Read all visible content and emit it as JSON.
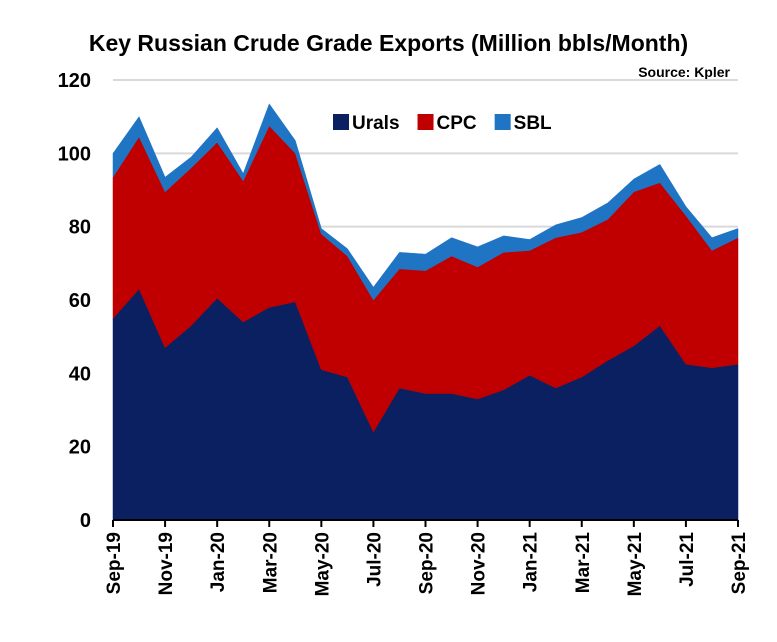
{
  "chart_data": {
    "type": "area",
    "stacked": true,
    "title": "Key Russian Crude Grade Exports (Million bbls/Month)",
    "source": "Source: Kpler",
    "xlabel": "",
    "ylabel": "",
    "ylim": [
      0,
      120
    ],
    "yticks": [
      0,
      20,
      40,
      60,
      80,
      100,
      120
    ],
    "grid": true,
    "legend_position": "top-right",
    "x": [
      "Sep-19",
      "Oct-19",
      "Nov-19",
      "Dec-19",
      "Jan-20",
      "Feb-20",
      "Mar-20",
      "Apr-20",
      "May-20",
      "Jun-20",
      "Jul-20",
      "Aug-20",
      "Sep-20",
      "Oct-20",
      "Nov-20",
      "Dec-20",
      "Jan-21",
      "Feb-21",
      "Mar-21",
      "Apr-21",
      "May-21",
      "Jun-21",
      "Jul-21",
      "Aug-21",
      "Sep-21"
    ],
    "xtick_labels": [
      "Sep-19",
      "Nov-19",
      "Jan-20",
      "Mar-20",
      "May-20",
      "Jul-20",
      "Sep-20",
      "Nov-20",
      "Jan-21",
      "Mar-21",
      "May-21",
      "Jul-21",
      "Sep-21"
    ],
    "series": [
      {
        "name": "Urals",
        "color": "#0a2060",
        "values": [
          55,
          63,
          47,
          53,
          60.5,
          54,
          58,
          59.5,
          41,
          39,
          24,
          36,
          34.5,
          34.5,
          33,
          35.5,
          39.5,
          36,
          39,
          43.5,
          47.5,
          53,
          42.5,
          41.5,
          42.5
        ]
      },
      {
        "name": "CPC",
        "color": "#c00000",
        "values": [
          38.5,
          41.5,
          42.5,
          43,
          42.5,
          38.5,
          49.5,
          40.5,
          37,
          33,
          36,
          32.5,
          33.5,
          37.5,
          36,
          37.5,
          34,
          41,
          39.5,
          38.5,
          42,
          39,
          40.5,
          32,
          34.5
        ]
      },
      {
        "name": "SBL",
        "color": "#1f74c4",
        "values": [
          6.5,
          5.5,
          4,
          3,
          4,
          2,
          6,
          3.5,
          1.5,
          2,
          3.5,
          4.5,
          4.5,
          5,
          5.5,
          4.5,
          3,
          3.5,
          4,
          4.5,
          3.5,
          5,
          2.5,
          3.5,
          2.5
        ]
      }
    ]
  }
}
